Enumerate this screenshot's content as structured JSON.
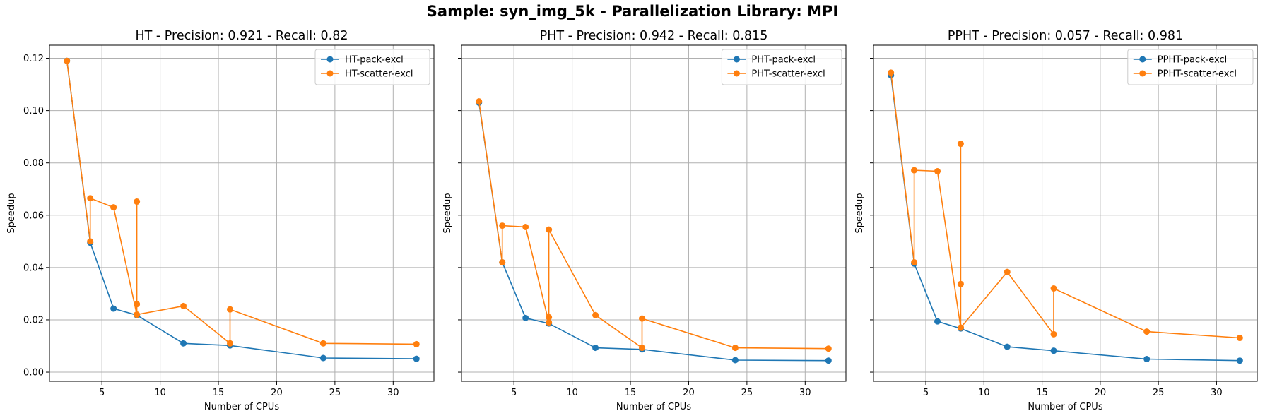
{
  "figure": {
    "title": "Sample: syn_img_5k - Parallelization Library: MPI"
  },
  "colors": {
    "pack": "#1f77b4",
    "scatter": "#ff7f0e",
    "grid": "#b0b0b0",
    "axis": "#000000"
  },
  "chart_data": [
    {
      "type": "line",
      "title": "HT - Precision: 0.921 - Recall: 0.82",
      "xlabel": "Number of CPUs",
      "ylabel": "Speedup",
      "xlim": [
        0.5,
        33.5
      ],
      "ylim": [
        -0.0035,
        0.125
      ],
      "xticks": [
        5,
        10,
        15,
        20,
        25,
        30
      ],
      "xtick_labels": [
        "5",
        "10",
        "15",
        "20",
        "25",
        "30"
      ],
      "yticks": [
        0.0,
        0.02,
        0.04,
        0.06,
        0.08,
        0.1,
        0.12
      ],
      "ytick_labels": [
        "0.00",
        "0.02",
        "0.04",
        "0.06",
        "0.08",
        "0.10",
        "0.12"
      ],
      "grid": true,
      "legend_position": "top-right",
      "series": [
        {
          "name": "HT-pack-excl",
          "color": "#1f77b4",
          "x": [
            2,
            4,
            6,
            8,
            12,
            16,
            24,
            32
          ],
          "y": [
            0.119,
            0.0495,
            0.0243,
            0.0218,
            0.011,
            0.0102,
            0.0054,
            0.0051
          ]
        },
        {
          "name": "HT-scatter-excl",
          "color": "#ff7f0e",
          "x": [
            2,
            4,
            4,
            6,
            8,
            8,
            8,
            8,
            12,
            16,
            16,
            24,
            32
          ],
          "y": [
            0.119,
            0.05,
            0.0665,
            0.063,
            0.022,
            0.026,
            0.0652,
            0.022,
            0.0253,
            0.011,
            0.024,
            0.011,
            0.0107
          ]
        }
      ]
    },
    {
      "type": "line",
      "title": "PHT - Precision: 0.942 - Recall: 0.815",
      "xlabel": "Number of CPUs",
      "ylabel": "Speedup",
      "xlim": [
        0.5,
        33.5
      ],
      "ylim": [
        -0.0035,
        0.125
      ],
      "xticks": [
        5,
        10,
        15,
        20,
        25,
        30
      ],
      "xtick_labels": [
        "5",
        "10",
        "15",
        "20",
        "25",
        "30"
      ],
      "yticks": [
        0.0,
        0.02,
        0.04,
        0.06,
        0.08,
        0.1,
        0.12
      ],
      "ytick_labels": [
        "",
        "",
        "",
        "",
        "",
        "",
        ""
      ],
      "grid": true,
      "legend_position": "top-right",
      "series": [
        {
          "name": "PHT-pack-excl",
          "color": "#1f77b4",
          "x": [
            2,
            4,
            6,
            8,
            12,
            16,
            24,
            32
          ],
          "y": [
            0.103,
            0.042,
            0.0207,
            0.0186,
            0.0093,
            0.0087,
            0.0046,
            0.0044
          ]
        },
        {
          "name": "PHT-scatter-excl",
          "color": "#ff7f0e",
          "x": [
            2,
            4,
            4,
            6,
            8,
            8,
            8,
            12,
            16,
            16,
            24,
            32
          ],
          "y": [
            0.1035,
            0.042,
            0.056,
            0.0555,
            0.019,
            0.021,
            0.0545,
            0.0218,
            0.0093,
            0.0205,
            0.0093,
            0.009
          ]
        }
      ]
    },
    {
      "type": "line",
      "title": "PPHT - Precision: 0.057 - Recall: 0.981",
      "xlabel": "Number of CPUs",
      "ylabel": "Speedup",
      "xlim": [
        0.5,
        33.5
      ],
      "ylim": [
        -0.0035,
        0.125
      ],
      "xticks": [
        5,
        10,
        15,
        20,
        25,
        30
      ],
      "xtick_labels": [
        "5",
        "10",
        "15",
        "20",
        "25",
        "30"
      ],
      "yticks": [
        0.0,
        0.02,
        0.04,
        0.06,
        0.08,
        0.1,
        0.12
      ],
      "ytick_labels": [
        "",
        "",
        "",
        "",
        "",
        "",
        ""
      ],
      "grid": true,
      "legend_position": "top-right",
      "series": [
        {
          "name": "PPHT-pack-excl",
          "color": "#1f77b4",
          "x": [
            2,
            4,
            6,
            8,
            12,
            16,
            24,
            32
          ],
          "y": [
            0.1135,
            0.0415,
            0.0194,
            0.0167,
            0.0097,
            0.0082,
            0.005,
            0.0044
          ]
        },
        {
          "name": "PPHT-scatter-excl",
          "color": "#ff7f0e",
          "x": [
            2,
            4,
            4,
            6,
            8,
            8,
            8,
            8,
            12,
            16,
            16,
            24,
            32
          ],
          "y": [
            0.1145,
            0.042,
            0.0772,
            0.0768,
            0.017,
            0.0337,
            0.0873,
            0.017,
            0.0383,
            0.0145,
            0.032,
            0.0155,
            0.0131
          ]
        }
      ]
    }
  ]
}
